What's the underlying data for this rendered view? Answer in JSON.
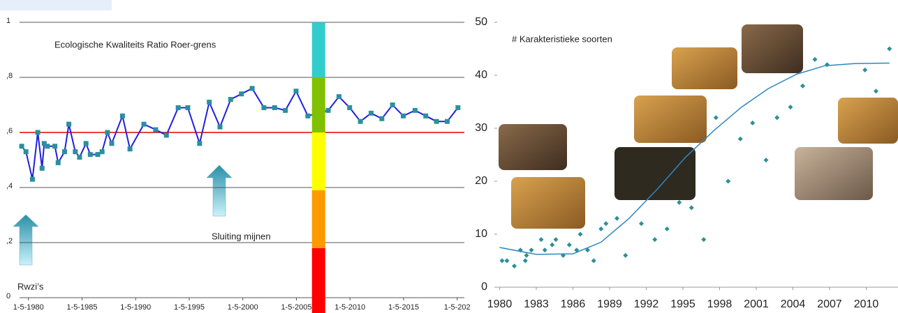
{
  "chart_data": [
    {
      "type": "line",
      "title": "Ecologische Kwaliteits Ratio  Roer-grens",
      "annotations": [
        "Sluiting mijnen",
        "Rwzi’s"
      ],
      "x": [
        1979.7,
        1980.1,
        1980.7,
        1981.2,
        1981.6,
        1981.8,
        1982.1,
        1982.8,
        1983.1,
        1983.7,
        1984.1,
        1984.7,
        1985.1,
        1985.7,
        1986.1,
        1986.8,
        1987.2,
        1987.7,
        1988.1,
        1989.1,
        1989.8,
        1991.1,
        1992.2,
        1993.2,
        1994.3,
        1995.2,
        1996.3,
        1997.2,
        1998.2,
        1999.2,
        2000.2,
        2001.2,
        2002.3,
        2003.3,
        2004.3,
        2005.3,
        2006.4,
        2008.3,
        2009.3,
        2010.3,
        2011.3,
        2012.3,
        2013.3,
        2014.3,
        2015.3,
        2016.4,
        2017.4,
        2018.4,
        2019.4,
        2020.4
      ],
      "values": [
        0.55,
        0.53,
        0.43,
        0.6,
        0.47,
        0.56,
        0.55,
        0.55,
        0.49,
        0.53,
        0.63,
        0.53,
        0.51,
        0.56,
        0.52,
        0.52,
        0.53,
        0.6,
        0.56,
        0.66,
        0.54,
        0.63,
        0.61,
        0.59,
        0.69,
        0.69,
        0.56,
        0.71,
        0.62,
        0.72,
        0.74,
        0.76,
        0.69,
        0.69,
        0.68,
        0.75,
        0.66,
        0.68,
        0.73,
        0.69,
        0.64,
        0.67,
        0.65,
        0.7,
        0.66,
        0.68,
        0.66,
        0.64,
        0.64,
        0.69
      ],
      "color": "#1f1fe0",
      "marker_color": "#2a8f9f",
      "xlim": [
        1979.5,
        2021
      ],
      "xticks": [
        {
          "value": 1980.33,
          "label": "1-5-1980"
        },
        {
          "value": 1985.33,
          "label": "1-5-1985"
        },
        {
          "value": 1990.33,
          "label": "1-5-1990"
        },
        {
          "value": 1995.33,
          "label": "1-5-1995"
        },
        {
          "value": 2000.33,
          "label": "1-5-2000"
        },
        {
          "value": 2005.33,
          "label": "1-5-2005"
        },
        {
          "value": 2010.33,
          "label": "1-5-2010"
        },
        {
          "value": 2015.33,
          "label": "1-5-2015"
        },
        {
          "value": 2020.33,
          "label": "1-5-202"
        }
      ],
      "ylim": [
        0,
        1
      ],
      "yticks": [
        0,
        {
          "value": 0.2,
          "label": ",2"
        },
        {
          "value": 0.4,
          "label": ",4"
        },
        {
          "value": 0.6,
          "label": ",6"
        },
        {
          "value": 0.8,
          "label": ",8"
        },
        1
      ],
      "grid": true,
      "threshold": {
        "value": 0.6,
        "color": "#e00000"
      },
      "band_x": 2007.4,
      "bands": [
        {
          "from": 0,
          "to": 0.18,
          "color": "#ff0000"
        },
        {
          "from": 0.18,
          "to": 0.39,
          "color": "#ff9900"
        },
        {
          "from": 0.39,
          "to": 0.6,
          "color": "#ffff00"
        },
        {
          "from": 0.6,
          "to": 0.8,
          "color": "#80c000"
        },
        {
          "from": 0.8,
          "to": 1,
          "color": "#33cccc"
        }
      ]
    },
    {
      "type": "scatter",
      "title": "# Karakteristieke soorten",
      "x": [
        1980.2,
        1980.6,
        1981.2,
        1981.7,
        1982.1,
        1982.2,
        1982.6,
        1983.4,
        1983.7,
        1984.3,
        1984.6,
        1985.2,
        1985.7,
        1986.3,
        1986.6,
        1987.2,
        1987.7,
        1988.3,
        1988.7,
        1989.6,
        1990.3,
        1991.6,
        1992.7,
        1993.7,
        1994.7,
        1995.7,
        1996.7,
        1997.7,
        1998.7,
        1999.7,
        2000.7,
        2001.8,
        2002.7,
        2003.8,
        2004.8,
        2005.8,
        2006.8,
        2009.9,
        2010.8,
        2011.9
      ],
      "values": [
        5,
        5,
        4,
        7,
        5,
        6,
        7,
        9,
        7,
        8,
        9,
        6,
        8,
        7,
        10,
        7,
        5,
        11,
        12,
        13,
        6,
        12,
        9,
        11,
        16,
        15,
        9,
        32,
        20,
        28,
        31,
        24,
        32,
        34,
        38,
        43,
        42,
        41,
        37,
        45
      ],
      "color": "#2a9099",
      "trend": {
        "x": [
          1980,
          1983,
          1986,
          1988.3,
          1990.6,
          1992.9,
          1995.2,
          1997.5,
          1999.8,
          2002,
          2004.3,
          2006.6,
          2009,
          2011.9
        ],
        "values": [
          7.5,
          6.2,
          6.3,
          8.5,
          13,
          18.5,
          24.5,
          29.5,
          34,
          37.5,
          40.2,
          41.8,
          42.2,
          42.3
        ],
        "color": "#2e86c1"
      },
      "xlim": [
        1979.8,
        2012.6
      ],
      "xticks": [
        1980,
        1983,
        1986,
        1989,
        1992,
        1995,
        1998,
        2001,
        2004,
        2007,
        2010
      ],
      "ylim": [
        0,
        50
      ],
      "yticks": [
        0,
        10,
        20,
        30,
        40,
        50
      ]
    }
  ]
}
